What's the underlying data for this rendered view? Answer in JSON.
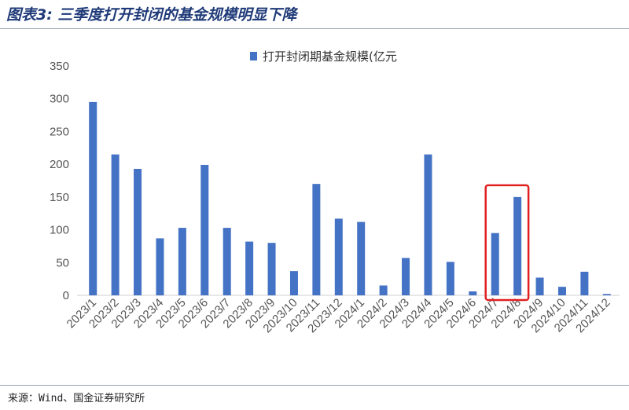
{
  "header": {
    "title": "图表3: 三季度打开封闭的基金规模明显下降"
  },
  "footer": {
    "source": "来源：Wind、国金证券研究所"
  },
  "chart_data": {
    "type": "bar",
    "title": "",
    "xlabel": "",
    "ylabel": "",
    "ylim": [
      0,
      350
    ],
    "yticks": [
      0,
      50,
      100,
      150,
      200,
      250,
      300,
      350
    ],
    "legend_position": "top-center",
    "grid": false,
    "bar_color": "#4472c4",
    "highlight_color": "#e02020",
    "highlight_categories": [
      "2024/7",
      "2024/8"
    ],
    "categories": [
      "2023/1",
      "2023/2",
      "2023/3",
      "2023/4",
      "2023/5",
      "2023/6",
      "2023/7",
      "2023/8",
      "2023/9",
      "2023/10",
      "2023/11",
      "2023/12",
      "2024/1",
      "2024/2",
      "2024/3",
      "2024/4",
      "2024/5",
      "2024/6",
      "2024/7",
      "2024/8",
      "2024/9",
      "2024/10",
      "2024/11",
      "2024/12"
    ],
    "series": [
      {
        "name": "打开封闭期基金规模(亿元",
        "values": [
          295,
          215,
          193,
          87,
          103,
          199,
          103,
          82,
          80,
          37,
          170,
          117,
          112,
          15,
          57,
          215,
          51,
          6,
          95,
          150,
          27,
          13,
          36,
          2
        ]
      }
    ]
  }
}
